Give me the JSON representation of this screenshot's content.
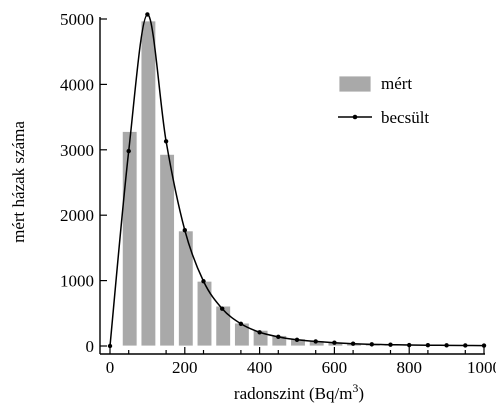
{
  "chart_data": {
    "type": "bar",
    "xlabel": "radonszint (Bq/m",
    "xlabel_sup": "3",
    "xlabel_close": ")",
    "ylabel": "mért házak száma",
    "xlim": [
      0,
      1000
    ],
    "ylim": [
      0,
      5000
    ],
    "xticks": [
      0,
      200,
      400,
      600,
      800,
      1000
    ],
    "yticks": [
      0,
      1000,
      2000,
      3000,
      4000,
      5000
    ],
    "grid": false,
    "legend_position": "top-right",
    "bar_color": "#a9a9a9",
    "line_color": "#000000",
    "series": [
      {
        "name": "mért",
        "kind": "bar",
        "bin_width": 50,
        "x": [
          50,
          100,
          150,
          200,
          250,
          300,
          350,
          400,
          450,
          500,
          550,
          600,
          650,
          700,
          750,
          800,
          850,
          900,
          950,
          1000
        ],
        "values": [
          3280,
          4970,
          2930,
          1760,
          990,
          610,
          350,
          240,
          160,
          110,
          80,
          60,
          40,
          30,
          25,
          20,
          15,
          12,
          10,
          8
        ]
      },
      {
        "name": "becsült",
        "kind": "line",
        "x": [
          0,
          50,
          100,
          150,
          200,
          250,
          300,
          350,
          400,
          450,
          500,
          550,
          600,
          650,
          700,
          750,
          800,
          850,
          900,
          950,
          1000
        ],
        "values": [
          0,
          2980,
          5070,
          3130,
          1770,
          990,
          570,
          340,
          210,
          140,
          95,
          70,
          50,
          35,
          25,
          20,
          15,
          12,
          10,
          8,
          6
        ]
      }
    ]
  }
}
